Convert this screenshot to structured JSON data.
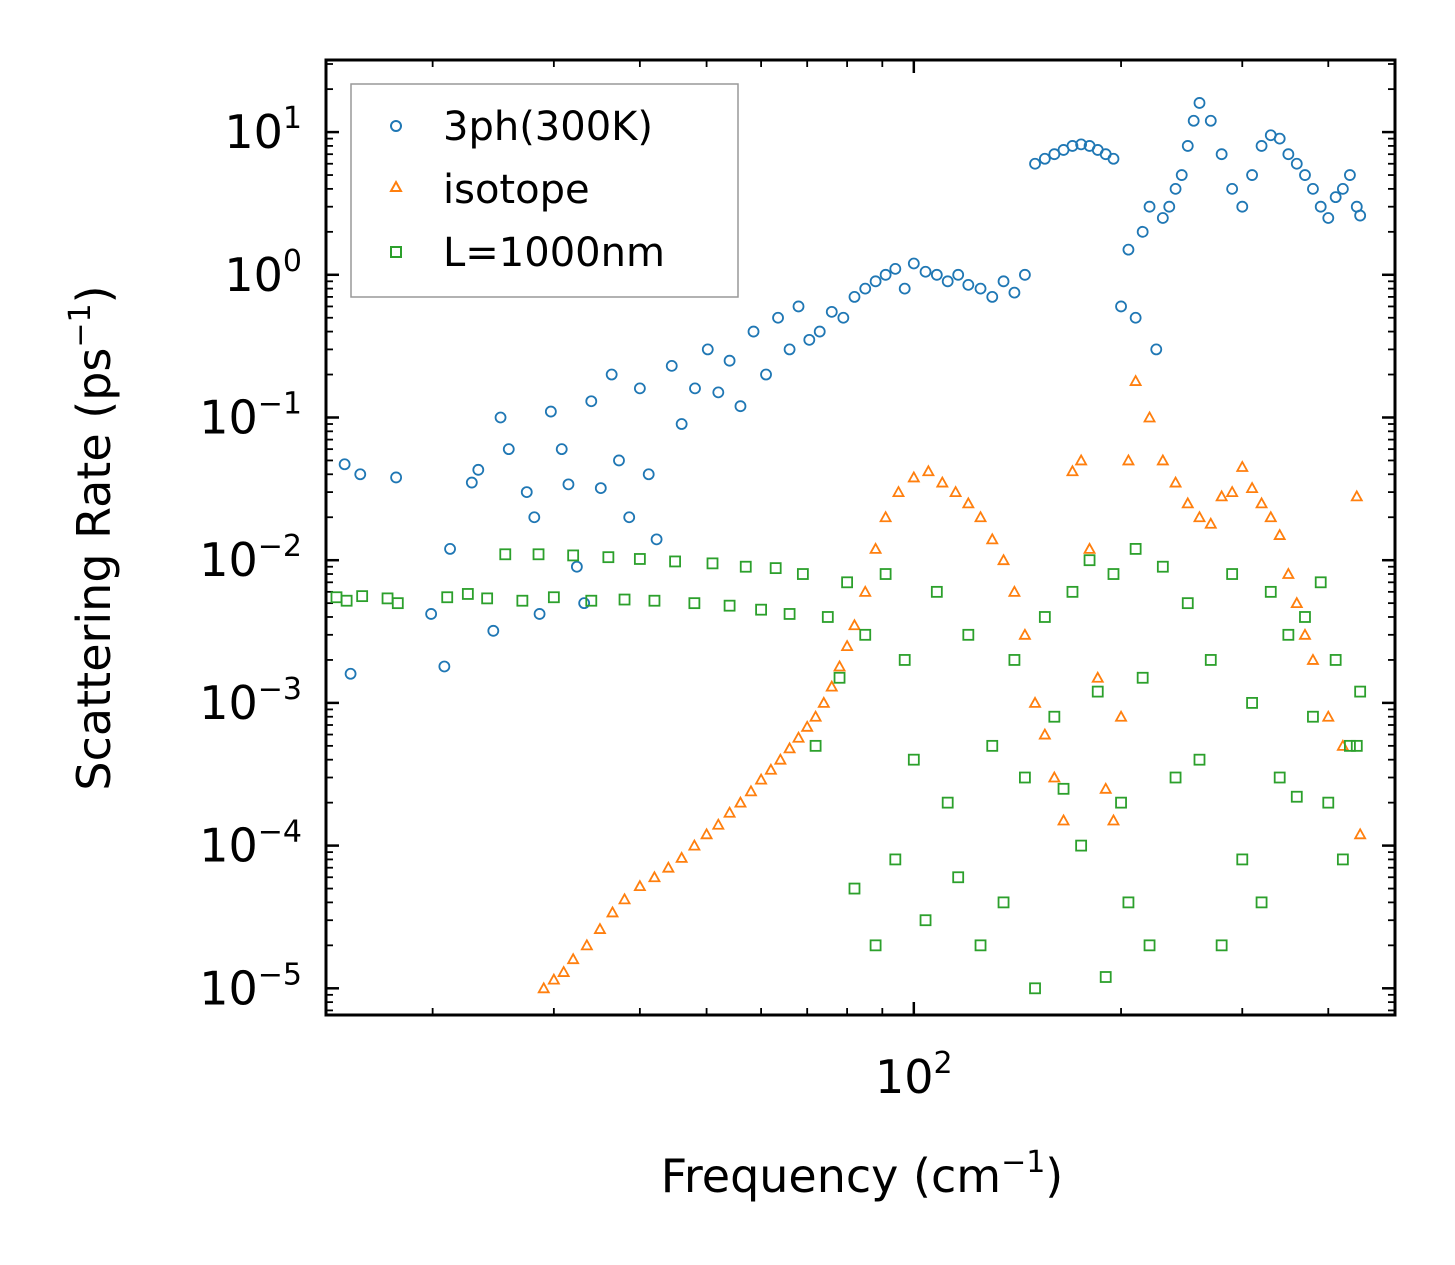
{
  "chart_data": {
    "type": "scatter",
    "xscale": "log",
    "yscale": "log",
    "xlim": [
      14,
      500
    ],
    "ylim": [
      6.5e-06,
      32
    ],
    "xlabel": "Frequency (cm",
    "xlabel_sup": "−1",
    "xlabel_end": ")",
    "ylabel": "Scattering Rate (ps",
    "ylabel_sup": "−1",
    "ylabel_end": ")",
    "x_ticks": [
      {
        "base": "10",
        "exp": "2",
        "value": 100
      }
    ],
    "y_ticks": [
      {
        "base": "10",
        "exp": "1",
        "value": 10
      },
      {
        "base": "10",
        "exp": "0",
        "value": 1
      },
      {
        "base": "10",
        "exp": "−1",
        "value": 0.1
      },
      {
        "base": "10",
        "exp": "−2",
        "value": 0.01
      },
      {
        "base": "10",
        "exp": "−3",
        "value": 0.001
      },
      {
        "base": "10",
        "exp": "−4",
        "value": 0.0001
      },
      {
        "base": "10",
        "exp": "−5",
        "value": 1e-05
      }
    ],
    "legend_position": "top-left",
    "series": [
      {
        "name": "3ph(300K)",
        "marker": "circle",
        "color": "#1f77b4",
        "x": [
          14.9,
          15.2,
          15.7,
          17.7,
          19.9,
          20.8,
          21.2,
          22.8,
          23.3,
          24.5,
          25.1,
          25.8,
          27.4,
          28.1,
          28.6,
          29.7,
          30.8,
          31.5,
          32.4,
          33.2,
          34.0,
          35.1,
          36.4,
          37.3,
          38.6,
          40.0,
          41.2,
          42.3,
          44.5,
          46.0,
          48.1,
          50.2,
          52.0,
          54.0,
          56.0,
          58.5,
          61.0,
          63.5,
          66.0,
          68.0,
          70.5,
          73.0,
          76.0,
          79.0,
          82.0,
          85.0,
          88.0,
          91.0,
          94.0,
          97.0,
          100.0,
          104.0,
          108.0,
          112.0,
          116.0,
          120.0,
          125.0,
          130.0,
          135.0,
          140.0,
          145.0,
          150.0,
          155.0,
          160.0,
          165.0,
          170.0,
          175.0,
          180.0,
          185.0,
          190.0,
          195.0,
          200.0,
          205.0,
          210.0,
          215.0,
          220.0,
          225.0,
          230.0,
          235.0,
          240.0,
          245.0,
          250.0,
          255.0,
          260.0,
          270.0,
          280.0,
          290.0,
          300.0,
          310.0,
          320.0,
          330.0,
          340.0,
          350.0,
          360.0,
          370.0,
          380.0,
          390.0,
          400.0,
          410.0,
          420.0,
          430.0,
          440.0,
          445.0
        ],
        "y": [
          0.047,
          0.0016,
          0.04,
          0.038,
          0.0042,
          0.0018,
          0.012,
          0.035,
          0.043,
          0.0032,
          0.1,
          0.06,
          0.03,
          0.02,
          0.0042,
          0.11,
          0.06,
          0.034,
          0.009,
          0.005,
          0.13,
          0.032,
          0.2,
          0.05,
          0.02,
          0.16,
          0.04,
          0.014,
          0.23,
          0.09,
          0.16,
          0.3,
          0.15,
          0.25,
          0.12,
          0.4,
          0.2,
          0.5,
          0.3,
          0.6,
          0.35,
          0.4,
          0.55,
          0.5,
          0.7,
          0.8,
          0.9,
          1.0,
          1.1,
          0.8,
          1.2,
          1.05,
          1.0,
          0.9,
          1.0,
          0.85,
          0.8,
          0.7,
          0.9,
          0.75,
          1.0,
          6.0,
          6.5,
          7.0,
          7.5,
          8.0,
          8.2,
          8.0,
          7.5,
          7.0,
          6.5,
          0.6,
          1.5,
          0.5,
          2.0,
          3.0,
          0.3,
          2.5,
          3.0,
          4.0,
          5.0,
          8.0,
          12.0,
          16.0,
          12.0,
          7.0,
          4.0,
          3.0,
          5.0,
          8.0,
          9.5,
          9.0,
          7.0,
          6.0,
          5.0,
          4.0,
          3.0,
          2.5,
          3.5,
          4.0,
          5.0,
          3.0,
          2.6
        ]
      },
      {
        "name": "isotope",
        "marker": "triangle",
        "color": "#ff7f0e",
        "x": [
          29.0,
          30.0,
          31.0,
          32.0,
          33.5,
          35.0,
          36.5,
          38.0,
          40.0,
          42.0,
          44.0,
          46.0,
          48.0,
          50.0,
          52.0,
          54.0,
          56.0,
          58.0,
          60.0,
          62.0,
          64.0,
          66.0,
          68.0,
          70.0,
          72.0,
          74.0,
          76.0,
          78.0,
          80.0,
          82.0,
          85.0,
          88.0,
          91.0,
          95.0,
          100.0,
          105.0,
          110.0,
          115.0,
          120.0,
          125.0,
          130.0,
          135.0,
          140.0,
          145.0,
          150.0,
          155.0,
          160.0,
          165.0,
          170.0,
          175.0,
          180.0,
          185.0,
          190.0,
          195.0,
          200.0,
          205.0,
          210.0,
          220.0,
          230.0,
          240.0,
          250.0,
          260.0,
          270.0,
          280.0,
          290.0,
          300.0,
          310.0,
          320.0,
          330.0,
          340.0,
          350.0,
          360.0,
          370.0,
          380.0,
          400.0,
          420.0,
          440.0,
          445.0
        ],
        "y": [
          1e-05,
          1.15e-05,
          1.3e-05,
          1.6e-05,
          2e-05,
          2.6e-05,
          3.4e-05,
          4.2e-05,
          5.2e-05,
          6e-05,
          7e-05,
          8.2e-05,
          0.0001,
          0.00012,
          0.00014,
          0.00017,
          0.0002,
          0.00024,
          0.00029,
          0.00034,
          0.0004,
          0.00048,
          0.00057,
          0.00068,
          0.0008,
          0.001,
          0.0013,
          0.0018,
          0.0025,
          0.0035,
          0.006,
          0.012,
          0.02,
          0.03,
          0.038,
          0.042,
          0.035,
          0.03,
          0.025,
          0.02,
          0.014,
          0.01,
          0.006,
          0.003,
          0.001,
          0.0006,
          0.0003,
          0.00015,
          0.042,
          0.05,
          0.012,
          0.0015,
          0.00025,
          0.00015,
          0.0008,
          0.05,
          0.18,
          0.1,
          0.05,
          0.035,
          0.025,
          0.02,
          0.018,
          0.028,
          0.03,
          0.045,
          0.032,
          0.025,
          0.02,
          0.015,
          0.008,
          0.005,
          0.003,
          0.002,
          0.0008,
          0.0005,
          0.028,
          0.00012
        ]
      },
      {
        "name": "L=1000nm",
        "marker": "square",
        "color": "#2ca02c",
        "x": [
          14.5,
          15.0,
          15.8,
          17.2,
          17.8,
          21.0,
          22.5,
          24.0,
          25.5,
          27.0,
          28.5,
          30.0,
          32.0,
          34.0,
          36.0,
          38.0,
          40.0,
          42.0,
          45.0,
          48.0,
          51.0,
          54.0,
          57.0,
          60.0,
          63.0,
          66.0,
          69.0,
          72.0,
          75.0,
          78.0,
          80.0,
          82.0,
          85.0,
          88.0,
          91.0,
          94.0,
          97.0,
          100.0,
          104.0,
          108.0,
          112.0,
          116.0,
          120.0,
          125.0,
          130.0,
          135.0,
          140.0,
          145.0,
          150.0,
          155.0,
          160.0,
          165.0,
          170.0,
          175.0,
          180.0,
          185.0,
          190.0,
          195.0,
          200.0,
          205.0,
          210.0,
          215.0,
          220.0,
          230.0,
          240.0,
          250.0,
          260.0,
          270.0,
          280.0,
          290.0,
          300.0,
          310.0,
          320.0,
          330.0,
          340.0,
          350.0,
          360.0,
          370.0,
          380.0,
          390.0,
          400.0,
          410.0,
          420.0,
          430.0,
          440.0,
          445.0
        ],
        "y": [
          0.0055,
          0.0052,
          0.0056,
          0.0054,
          0.005,
          0.0055,
          0.0058,
          0.0054,
          0.011,
          0.0052,
          0.011,
          0.0055,
          0.0108,
          0.0052,
          0.0105,
          0.0053,
          0.0102,
          0.0052,
          0.0098,
          0.005,
          0.0095,
          0.0048,
          0.009,
          0.0045,
          0.0088,
          0.0042,
          0.008,
          0.0005,
          0.004,
          0.0015,
          0.007,
          5e-05,
          0.003,
          2e-05,
          0.008,
          8e-05,
          0.002,
          0.0004,
          3e-05,
          0.006,
          0.0002,
          6e-05,
          0.003,
          2e-05,
          0.0005,
          4e-05,
          0.002,
          0.0003,
          1e-05,
          0.004,
          0.0008,
          0.00025,
          0.006,
          0.0001,
          0.01,
          0.0012,
          1.2e-05,
          0.008,
          0.0002,
          4e-05,
          0.012,
          0.0015,
          2e-05,
          0.009,
          0.0003,
          0.005,
          0.0004,
          0.002,
          2e-05,
          0.008,
          8e-05,
          0.001,
          4e-05,
          0.006,
          0.0003,
          0.003,
          0.00022,
          0.004,
          0.0008,
          0.007,
          0.0002,
          0.002,
          8e-05,
          0.0005,
          0.0005,
          0.0012
        ]
      }
    ]
  }
}
